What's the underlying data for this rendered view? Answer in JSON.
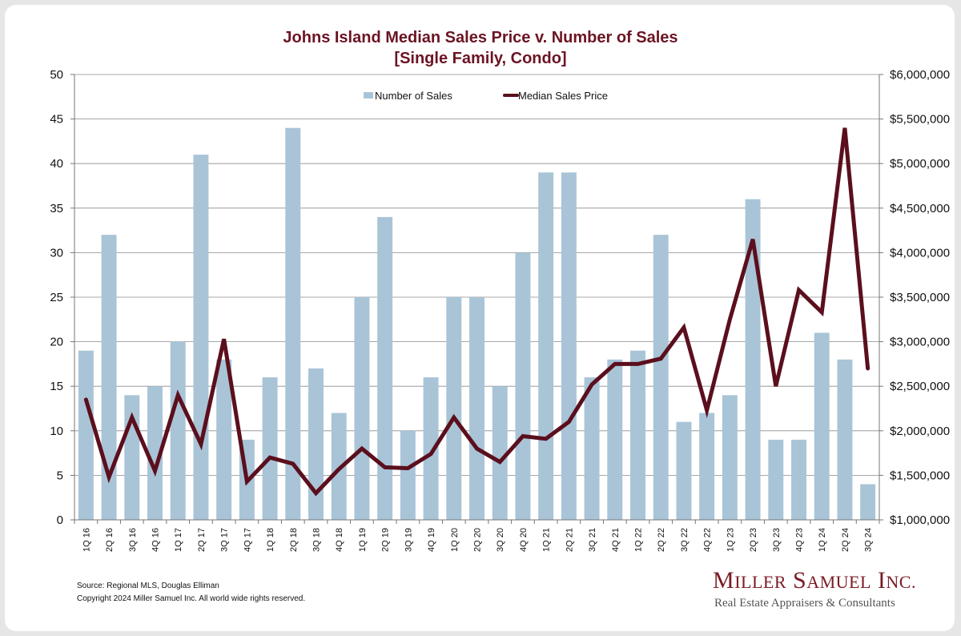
{
  "chart_data": {
    "type": "bar+line",
    "title": "Johns Island Median Sales Price v. Number of Sales",
    "subtitle": "[Single Family, Condo]",
    "categories": [
      "1Q 16",
      "2Q 16",
      "3Q 16",
      "4Q 16",
      "1Q 17",
      "2Q 17",
      "3Q 17",
      "4Q 17",
      "1Q 18",
      "2Q 18",
      "3Q 18",
      "4Q 18",
      "1Q 19",
      "2Q 19",
      "3Q 19",
      "4Q 19",
      "1Q 20",
      "2Q 20",
      "3Q 20",
      "4Q 20",
      "1Q 21",
      "2Q 21",
      "3Q 21",
      "4Q 21",
      "1Q 22",
      "2Q 22",
      "3Q 22",
      "4Q 22",
      "1Q 23",
      "2Q 23",
      "3Q 23",
      "4Q 23",
      "1Q 24",
      "2Q 24",
      "3Q 24"
    ],
    "series": [
      {
        "name": "Number of Sales",
        "type": "bar",
        "axis": "left",
        "color": "#a9c4d7",
        "values": [
          19,
          32,
          14,
          15,
          20,
          41,
          18,
          9,
          16,
          44,
          17,
          12,
          25,
          34,
          10,
          16,
          25,
          25,
          15,
          30,
          39,
          39,
          16,
          18,
          19,
          32,
          11,
          12,
          14,
          36,
          9,
          9,
          21,
          18,
          4
        ]
      },
      {
        "name": "Median Sales Price",
        "type": "line",
        "axis": "right",
        "color": "#5b0f1d",
        "values": [
          2350000,
          1480000,
          2150000,
          1550000,
          2400000,
          1850000,
          3030000,
          1430000,
          1700000,
          1630000,
          1300000,
          1570000,
          1800000,
          1590000,
          1580000,
          1740000,
          2150000,
          1800000,
          1650000,
          1940000,
          1910000,
          2100000,
          2520000,
          2750000,
          2750000,
          2810000,
          3160000,
          2230000,
          3250000,
          4150000,
          2500000,
          3580000,
          3330000,
          5400000,
          2700000
        ]
      }
    ],
    "yleft": {
      "min": 0,
      "max": 50,
      "step": 5,
      "ticks": [
        "0",
        "5",
        "10",
        "15",
        "20",
        "25",
        "30",
        "35",
        "40",
        "45",
        "50"
      ]
    },
    "yright": {
      "min": 1000000,
      "max": 6000000,
      "step": 500000,
      "ticks": [
        "$1,000,000",
        "$1,500,000",
        "$2,000,000",
        "$2,500,000",
        "$3,000,000",
        "$3,500,000",
        "$4,000,000",
        "$4,500,000",
        "$5,000,000",
        "$5,500,000",
        "$6,000,000"
      ]
    },
    "grid": true,
    "legend_position": "top-center"
  },
  "footer": {
    "source": "Source: Regional MLS, Douglas Elliman",
    "copyright": "Copyright 2024 Miller Samuel Inc.  All world wide rights reserved."
  },
  "logo": {
    "name": "Miller Samuel Inc.",
    "tagline": "Real Estate Appraisers & Consultants"
  }
}
